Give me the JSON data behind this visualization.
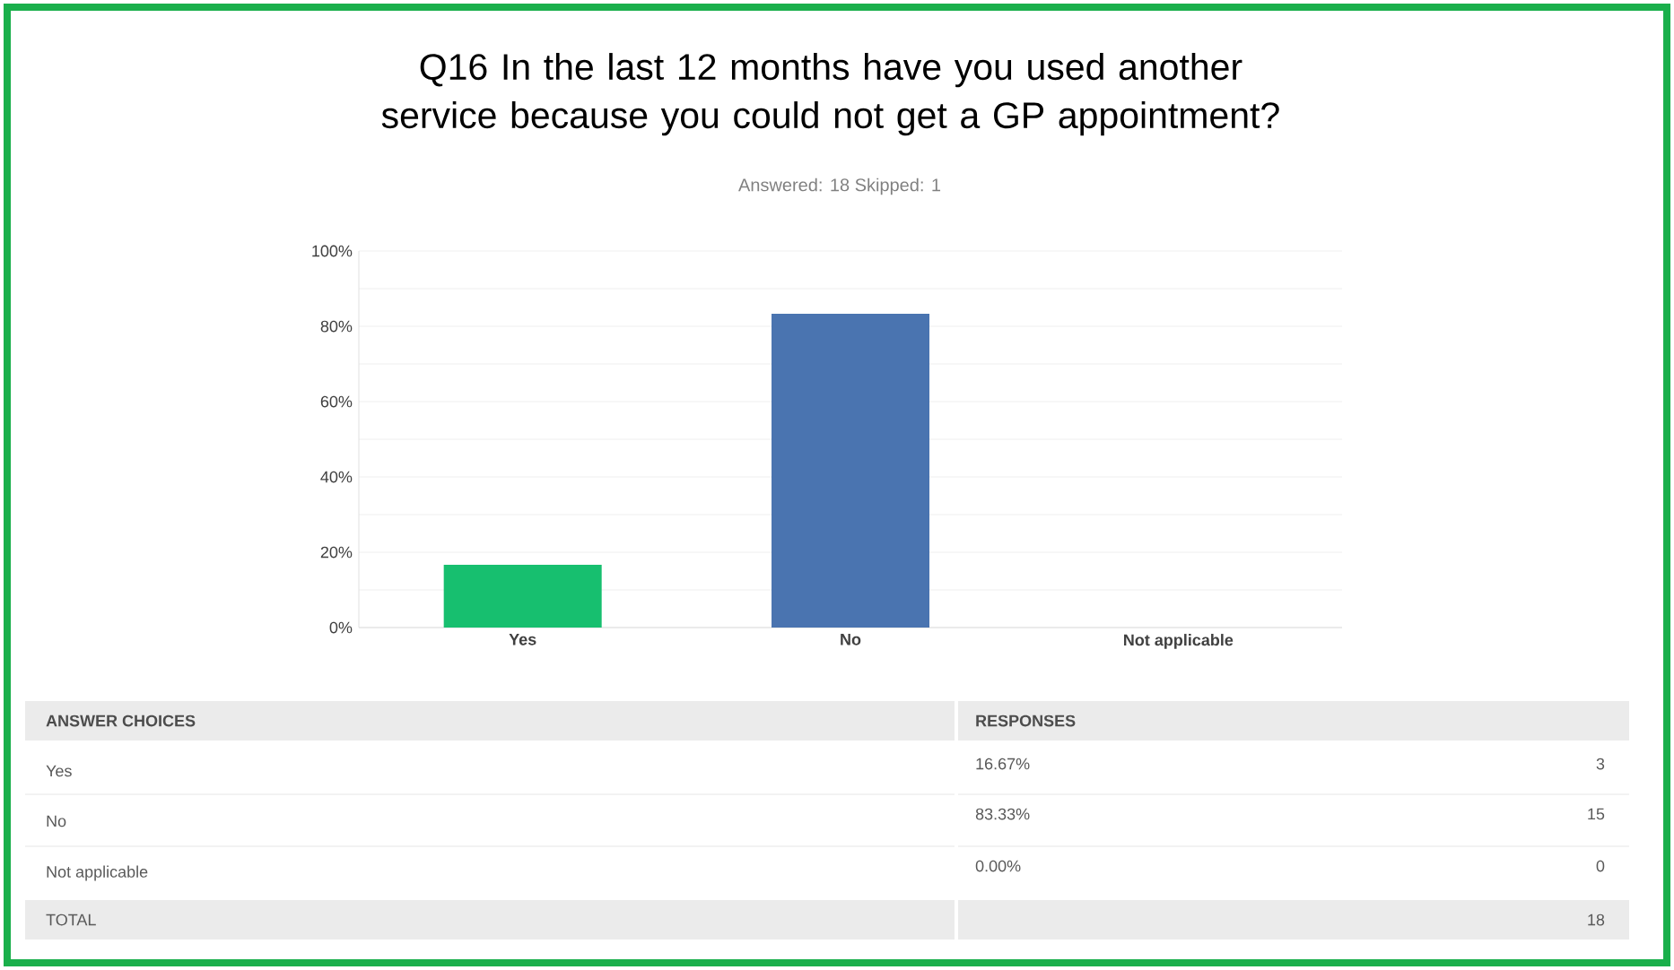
{
  "chart_data": {
    "type": "bar",
    "title": "Q16 In the last 12 months have you used another service because you could not get a GP appointment?",
    "subtitle": "Answered: 18    Skipped: 1",
    "categories": [
      "Yes",
      "No",
      "Not applicable"
    ],
    "values": [
      16.67,
      83.33,
      0
    ],
    "colors": [
      "#17bf6f",
      "#4a74b0",
      "#a0a0a0"
    ],
    "ylim": [
      0,
      100
    ],
    "yticks": [
      {
        "value": 0,
        "label": "0%"
      },
      {
        "value": 10,
        "label": null
      },
      {
        "value": 20,
        "label": "20%"
      },
      {
        "value": 30,
        "label": null
      },
      {
        "value": 40,
        "label": "40%"
      },
      {
        "value": 50,
        "label": null
      },
      {
        "value": 60,
        "label": "60%"
      },
      {
        "value": 70,
        "label": null
      },
      {
        "value": 80,
        "label": "80%"
      },
      {
        "value": 90,
        "label": null
      },
      {
        "value": 100,
        "label": "100%"
      }
    ],
    "grid": "y",
    "annotations": [
      "ANSWER CHOICES",
      "RESPONSES",
      "16.67%",
      "3",
      "83.33%",
      "15",
      "0.00%",
      "0",
      "TOTAL",
      "18"
    ]
  }
}
